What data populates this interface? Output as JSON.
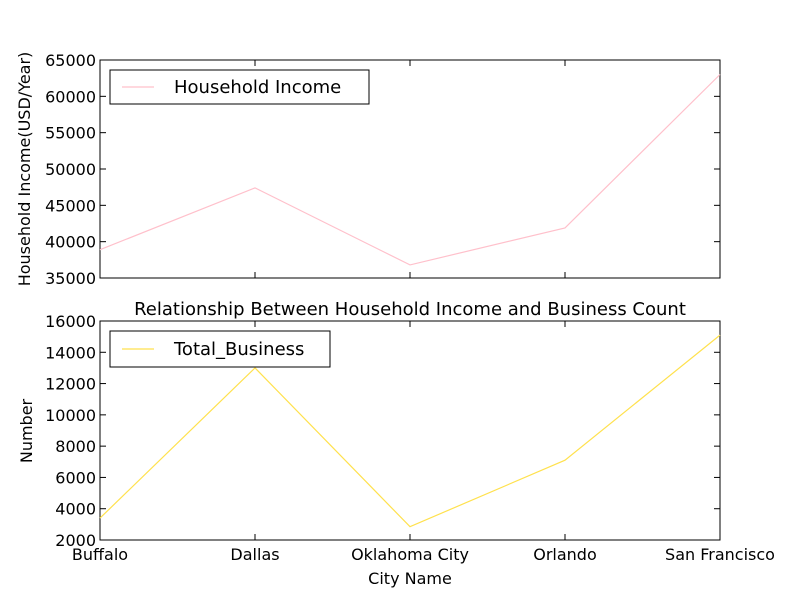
{
  "chart_data": [
    {
      "type": "line",
      "title": "",
      "xlabel": "",
      "ylabel": "Household Income(USD/Year)",
      "categories": [
        "Buffalo",
        "Dallas",
        "Oklahoma City",
        "Orlando",
        "San Francisco"
      ],
      "series": [
        {
          "name": "Household Income",
          "values": [
            38900,
            47400,
            36800,
            41900,
            63000
          ],
          "color": "#ffc0cb"
        }
      ],
      "ylim": [
        35000,
        65000
      ],
      "yticks": [
        35000,
        40000,
        45000,
        50000,
        55000,
        60000,
        65000
      ],
      "show_x_tick_labels": false,
      "grid": false,
      "legend": "upper-left"
    },
    {
      "type": "line",
      "title": "Relationship Between Household Income and Business Count",
      "xlabel": "City Name",
      "ylabel": "Number",
      "categories": [
        "Buffalo",
        "Dallas",
        "Oklahoma City",
        "Orlando",
        "San Francisco"
      ],
      "series": [
        {
          "name": "Total_Business",
          "values": [
            3400,
            13000,
            2850,
            7100,
            15100
          ],
          "color": "#ffe14d"
        }
      ],
      "ylim": [
        2000,
        16000
      ],
      "yticks": [
        2000,
        4000,
        6000,
        8000,
        10000,
        12000,
        14000,
        16000
      ],
      "show_x_tick_labels": true,
      "grid": false,
      "legend": "upper-left"
    }
  ]
}
